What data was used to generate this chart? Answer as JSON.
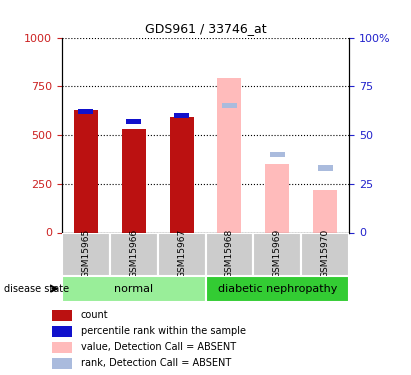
{
  "title": "GDS961 / 33746_at",
  "samples": [
    "GSM15965",
    "GSM15966",
    "GSM15967",
    "GSM15968",
    "GSM15969",
    "GSM15970"
  ],
  "count_values": [
    630,
    530,
    590,
    null,
    null,
    null
  ],
  "percentile_values": [
    62,
    57,
    60,
    null,
    null,
    null
  ],
  "absent_count_values": [
    null,
    null,
    null,
    790,
    350,
    220
  ],
  "absent_rank_values": [
    null,
    null,
    null,
    65,
    40,
    33
  ],
  "ylim_left": [
    0,
    1000
  ],
  "ylim_right": [
    0,
    100
  ],
  "yticks_left": [
    0,
    250,
    500,
    750,
    1000
  ],
  "ytick_labels_left": [
    "0",
    "250",
    "500",
    "750",
    "1000"
  ],
  "ytick_labels_right": [
    "0",
    "25",
    "50",
    "75",
    "100%"
  ],
  "color_count": "#bb1111",
  "color_percentile": "#1111cc",
  "color_absent_count": "#ffbbbb",
  "color_absent_rank": "#aabbdd",
  "color_normal_bg": "#99ee99",
  "color_diabetic_bg": "#33cc33",
  "color_sample_bg": "#cccccc",
  "bar_width": 0.5,
  "legend_items": [
    {
      "label": "count",
      "color": "#bb1111"
    },
    {
      "label": "percentile rank within the sample",
      "color": "#1111cc"
    },
    {
      "label": "value, Detection Call = ABSENT",
      "color": "#ffbbbb"
    },
    {
      "label": "rank, Detection Call = ABSENT",
      "color": "#aabbdd"
    }
  ]
}
